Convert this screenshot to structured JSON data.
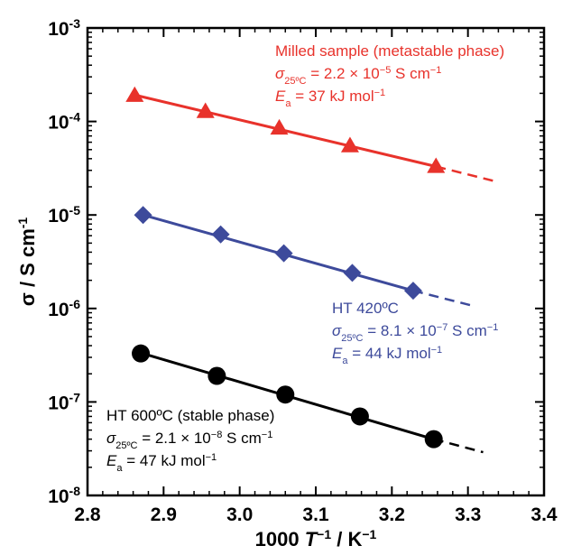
{
  "chart_data": {
    "type": "scatter",
    "xlabel": {
      "prefix": "1000 ",
      "var": "T",
      "sup": "−1",
      "suffix": " / K",
      "unit_sup": "−1"
    },
    "ylabel": {
      "text": "σ / S cm",
      "sup": "-1"
    },
    "xlim": [
      2.8,
      3.4
    ],
    "ylim": [
      1e-08,
      0.001
    ],
    "yscale": "log",
    "x_ticks": [
      "2.8",
      "2.9",
      "3.0",
      "3.1",
      "3.2",
      "3.3",
      "3.4"
    ],
    "y_ticks": [
      {
        "base": "10",
        "exp": "-8"
      },
      {
        "base": "10",
        "exp": "-7"
      },
      {
        "base": "10",
        "exp": "-6"
      },
      {
        "base": "10",
        "exp": "-5"
      },
      {
        "base": "10",
        "exp": "-4"
      },
      {
        "base": "10",
        "exp": "-3"
      }
    ],
    "series": [
      {
        "color": "#e8322b",
        "marker": "triangle",
        "x": [
          2.862,
          2.955,
          3.052,
          3.145,
          3.258
        ],
        "y": [
          0.00019,
          0.000128,
          8.5e-05,
          5.5e-05,
          3.3e-05
        ],
        "fit_x": [
          2.862,
          3.258
        ],
        "fit_y": [
          0.000192,
          3.3e-05
        ],
        "extrap_x": [
          3.258,
          3.335
        ],
        "extrap_y": [
          3.3e-05,
          2.3e-05
        ],
        "annotation": [
          "Milled sample (metastable phase)",
          {
            "sym": "σ",
            "sub": "25ºC",
            "text": " = 2.2 × 10",
            "sup": "−5",
            "unit": " S cm",
            "unit_sup": "−1"
          },
          {
            "sym": "E",
            "sub": "a",
            "text": " = 37 kJ mol",
            "sup": "−1"
          }
        ]
      },
      {
        "color": "#3d4a9b",
        "marker": "diamond",
        "x": [
          2.873,
          2.975,
          3.058,
          3.148,
          3.228
        ],
        "y": [
          1e-05,
          6.2e-06,
          3.9e-06,
          2.4e-06,
          1.55e-06
        ],
        "fit_x": [
          2.873,
          3.228
        ],
        "fit_y": [
          1e-05,
          1.55e-06
        ],
        "extrap_x": [
          3.228,
          3.31
        ],
        "extrap_y": [
          1.55e-06,
          1.05e-06
        ],
        "annotation": [
          "HT 420ºC",
          {
            "sym": "σ",
            "sub": "25ºC",
            "text": " = 8.1 × 10",
            "sup": "−7",
            "unit": " S cm",
            "unit_sup": "−1"
          },
          {
            "sym": "E",
            "sub": "a",
            "text": " = 44 kJ mol",
            "sup": "−1"
          }
        ]
      },
      {
        "color": "#000000",
        "marker": "circle",
        "x": [
          2.87,
          2.97,
          3.06,
          3.158,
          3.255
        ],
        "y": [
          3.3e-07,
          1.9e-07,
          1.2e-07,
          7e-08,
          4e-08
        ],
        "fit_x": [
          2.87,
          3.255
        ],
        "fit_y": [
          3.35e-07,
          4e-08
        ],
        "extrap_x": [
          3.255,
          3.32
        ],
        "extrap_y": [
          4e-08,
          2.9e-08
        ],
        "annotation": [
          "HT 600ºC (stable phase)",
          {
            "sym": "σ",
            "sub": "25ºC",
            "text": " = 2.1 × 10",
            "sup": "−8",
            "unit": " S cm",
            "unit_sup": "−1"
          },
          {
            "sym": "E",
            "sub": "a",
            "text": " = 47 kJ mol",
            "sup": "−1"
          }
        ]
      }
    ]
  }
}
